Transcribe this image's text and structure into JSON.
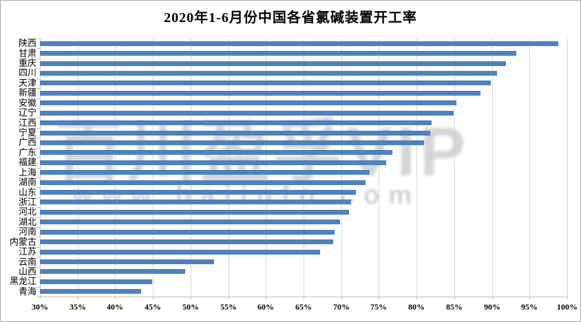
{
  "title": "2020年1-6月份中国各省氯碱装置开工率",
  "watermark": {
    "line1": "百川盈孚VIP",
    "line2": "www.baiinfo.com"
  },
  "colors": {
    "bar": "#4f81bd",
    "gridline": "#d9d9d9",
    "axis": "#bfbfbf",
    "watermark": "#c8c8c8",
    "title_text": "#000000"
  },
  "chart_data": {
    "type": "bar",
    "orientation": "horizontal",
    "title": "2020年1-6月份中国各省氯碱装置开工率",
    "xlabel": "",
    "ylabel": "",
    "xlim": [
      30,
      100
    ],
    "x_tick_step": 5,
    "x_tick_labels": [
      "30%",
      "35%",
      "40%",
      "45%",
      "50%",
      "55%",
      "60%",
      "65%",
      "70%",
      "75%",
      "80%",
      "85%",
      "90%",
      "95%",
      "100%"
    ],
    "grid": true,
    "legend": false,
    "unit": "percent",
    "categories": [
      "陕西",
      "甘肃",
      "重庆",
      "四川",
      "天津",
      "新疆",
      "安徽",
      "辽宁",
      "江西",
      "宁夏",
      "广西",
      "广东",
      "福建",
      "上海",
      "湖南",
      "山东",
      "浙江",
      "河北",
      "湖北",
      "河南",
      "内蒙古",
      "江苏",
      "云南",
      "山西",
      "黑龙江",
      "青海"
    ],
    "values": [
      98.8,
      93.2,
      91.9,
      90.7,
      89.9,
      88.5,
      85.3,
      84.9,
      82.0,
      81.8,
      81.0,
      76.8,
      76.0,
      73.8,
      73.2,
      71.9,
      71.3,
      71.0,
      69.8,
      69.1,
      68.9,
      67.2,
      53.1,
      49.3,
      44.9,
      43.4
    ]
  }
}
